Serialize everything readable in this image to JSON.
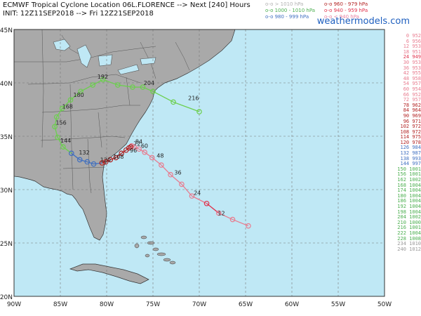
{
  "header": {
    "title": "ECMWF Tropical Cyclone Location 06L.FLORENCE --> Next [240] Hours",
    "init": "INIT: 12Z11SEP2018 --> Fri 12Z21SEP2018",
    "brand": "weathermodels.com"
  },
  "legend": {
    "col1": [
      {
        "text": "o-o > 1010 hPa",
        "color": "#b0b0b0"
      },
      {
        "text": "o-o 1000 - 1010 hPa",
        "color": "#4caf50"
      },
      {
        "text": "o-o 980 - 999 hPa",
        "color": "#3f6fc0"
      }
    ],
    "col2": [
      {
        "text": "o-o 960 - 979 hPa",
        "color": "#b22222"
      },
      {
        "text": "o-o 940 - 959 hPa",
        "color": "#e0304a"
      },
      {
        "text": "o-o < 940 hPa",
        "color": "#e87fa0"
      }
    ]
  },
  "axes": {
    "lat_labels": [
      "45N",
      "40N",
      "35N",
      "30N",
      "25N",
      "20N"
    ],
    "lon_labels": [
      "90W",
      "85W",
      "80W",
      "75W",
      "70W",
      "65W",
      "60W",
      "55W",
      "50W"
    ]
  },
  "colors": {
    "ocean": "#bfe8f5",
    "land": "#a9a9a9",
    "gray_track": "#c0c0c0",
    "green_track": "#6ccf4e",
    "blue_track": "#3f6fc0",
    "darkred_track": "#b22222",
    "red_track": "#e0304a",
    "pink_track": "#e87c8f"
  },
  "track": {
    "hour_labels": [
      {
        "text": "12",
        "lon": -68.0,
        "lat": 27.6
      },
      {
        "text": "24",
        "lon": -70.6,
        "lat": 29.5
      },
      {
        "text": "36",
        "lon": -72.7,
        "lat": 31.4
      },
      {
        "text": "48",
        "lon": -74.6,
        "lat": 33.0
      },
      {
        "text": "60",
        "lon": -76.3,
        "lat": 33.9
      },
      {
        "text": "72",
        "lon": -77.1,
        "lat": 34.1
      },
      {
        "text": "84",
        "lon": -76.9,
        "lat": 34.3
      },
      {
        "text": "96",
        "lon": -77.5,
        "lat": 33.5
      },
      {
        "text": "108",
        "lon": -79.3,
        "lat": 32.9
      },
      {
        "text": "120",
        "lon": -80.7,
        "lat": 32.6
      },
      {
        "text": "132",
        "lon": -83.0,
        "lat": 33.3
      },
      {
        "text": "144",
        "lon": -85.0,
        "lat": 34.4
      },
      {
        "text": "156",
        "lon": -85.5,
        "lat": 36.1
      },
      {
        "text": "168",
        "lon": -84.8,
        "lat": 37.6
      },
      {
        "text": "180",
        "lon": -83.6,
        "lat": 38.7
      },
      {
        "text": "192",
        "lon": -81.0,
        "lat": 40.4
      },
      {
        "text": "204",
        "lon": -76.0,
        "lat": 39.8
      },
      {
        "text": "216",
        "lon": -71.2,
        "lat": 38.4
      }
    ]
  },
  "side_table": [
    {
      "h": "0",
      "p": "952",
      "color": "#e87c8f"
    },
    {
      "h": "6",
      "p": "956",
      "color": "#e87c8f"
    },
    {
      "h": "12",
      "p": "953",
      "color": "#e87c8f"
    },
    {
      "h": "18",
      "p": "951",
      "color": "#e87c8f"
    },
    {
      "h": "24",
      "p": "949",
      "color": "#e0304a"
    },
    {
      "h": "30",
      "p": "953",
      "color": "#e87c8f"
    },
    {
      "h": "36",
      "p": "953",
      "color": "#e87c8f"
    },
    {
      "h": "42",
      "p": "955",
      "color": "#e87c8f"
    },
    {
      "h": "48",
      "p": "958",
      "color": "#e87c8f"
    },
    {
      "h": "54",
      "p": "957",
      "color": "#e87c8f"
    },
    {
      "h": "60",
      "p": "954",
      "color": "#e87c8f"
    },
    {
      "h": "66",
      "p": "952",
      "color": "#e87c8f"
    },
    {
      "h": "72",
      "p": "957",
      "color": "#e87c8f"
    },
    {
      "h": "78",
      "p": "962",
      "color": "#b22222"
    },
    {
      "h": "84",
      "p": "964",
      "color": "#b22222"
    },
    {
      "h": "90",
      "p": "969",
      "color": "#b22222"
    },
    {
      "h": "96",
      "p": "971",
      "color": "#b22222"
    },
    {
      "h": "102",
      "p": "972",
      "color": "#b22222"
    },
    {
      "h": "108",
      "p": "972",
      "color": "#b22222"
    },
    {
      "h": "114",
      "p": "975",
      "color": "#b22222"
    },
    {
      "h": "120",
      "p": "978",
      "color": "#b22222"
    },
    {
      "h": "126",
      "p": "984",
      "color": "#3f6fc0"
    },
    {
      "h": "132",
      "p": "987",
      "color": "#3f6fc0"
    },
    {
      "h": "138",
      "p": "993",
      "color": "#3f6fc0"
    },
    {
      "h": "144",
      "p": "997",
      "color": "#3f6fc0"
    },
    {
      "h": "150",
      "p": "1001",
      "color": "#4caf50"
    },
    {
      "h": "156",
      "p": "1001",
      "color": "#4caf50"
    },
    {
      "h": "162",
      "p": "1002",
      "color": "#4caf50"
    },
    {
      "h": "168",
      "p": "1004",
      "color": "#4caf50"
    },
    {
      "h": "174",
      "p": "1004",
      "color": "#4caf50"
    },
    {
      "h": "180",
      "p": "1004",
      "color": "#4caf50"
    },
    {
      "h": "186",
      "p": "1004",
      "color": "#4caf50"
    },
    {
      "h": "192",
      "p": "1004",
      "color": "#4caf50"
    },
    {
      "h": "198",
      "p": "1004",
      "color": "#4caf50"
    },
    {
      "h": "204",
      "p": "1002",
      "color": "#4caf50"
    },
    {
      "h": "210",
      "p": "1000",
      "color": "#4caf50"
    },
    {
      "h": "216",
      "p": "1001",
      "color": "#4caf50"
    },
    {
      "h": "222",
      "p": "1004",
      "color": "#4caf50"
    },
    {
      "h": "228",
      "p": "1008",
      "color": "#4caf50"
    },
    {
      "h": "234",
      "p": "1010",
      "color": "#999999"
    },
    {
      "h": "240",
      "p": "1012",
      "color": "#999999"
    }
  ]
}
